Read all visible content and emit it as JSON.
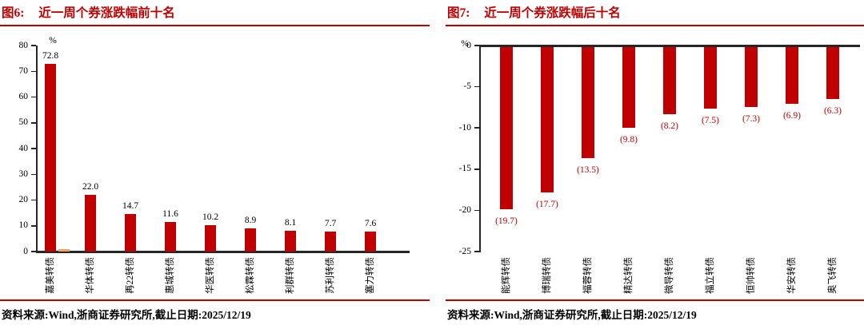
{
  "panels": [
    {
      "figure_label": "图6:",
      "source": "资料来源:Wind,浙商证券研究所,截止日期:2025/12/19"
    },
    {
      "figure_label": "图7:",
      "source": "资料来源:Wind,浙商证券研究所,截止日期:2025/12/19"
    }
  ],
  "colors": {
    "accent_red": "#C00000",
    "bar_red": "#C00000",
    "secondary_orange": "#EFA35C",
    "axis_black": "#262626"
  },
  "chart_data": [
    {
      "type": "bar",
      "title": "近一周个券涨跌幅前十名",
      "unit": "%",
      "categories": [
        "嘉美转债",
        "华体转债",
        "再22转债",
        "惠城转债",
        "华医转债",
        "松霖转债",
        "利群转债",
        "苏利转债",
        "塞力转债"
      ],
      "values": [
        72.8,
        22.0,
        14.7,
        11.6,
        10.2,
        8.9,
        8.1,
        7.7,
        7.6
      ],
      "value_labels": [
        "72.8",
        "22.0",
        "14.7",
        "11.6",
        "10.2",
        "8.9",
        "8.1",
        "7.7",
        "7.6"
      ],
      "secondary_series": {
        "category_index": 0,
        "value": 1.0,
        "color": "#EFA35C"
      },
      "bar_color": "#C00000",
      "value_label_color": "#000000",
      "value_label_position": "above",
      "ylim": [
        0,
        80
      ],
      "yticks": [
        80,
        70,
        60,
        50,
        40,
        30,
        20,
        10,
        0
      ],
      "ylabel": "%",
      "xlabel": "",
      "grid": false,
      "legend": false
    },
    {
      "type": "bar",
      "title": "近一周个券涨跌幅后十名",
      "unit": "%",
      "categories": [
        "能辉转债",
        "博瑞转债",
        "福蓉转债",
        "精达转债",
        "微导转债",
        "福立转债",
        "恒帅转债",
        "华安转债",
        "奥飞转债"
      ],
      "values": [
        -19.7,
        -17.7,
        -13.5,
        -9.8,
        -8.2,
        -7.5,
        -7.3,
        -6.9,
        -6.3
      ],
      "value_labels": [
        "(19.7)",
        "(17.7)",
        "(13.5)",
        "(9.8)",
        "(8.2)",
        "(7.5)",
        "(7.3)",
        "(6.9)",
        "(6.3)"
      ],
      "bar_color": "#C00000",
      "value_label_color": "#C00000",
      "value_label_position": "below",
      "ylim": [
        -25,
        0
      ],
      "yticks": [
        0,
        -5,
        -10,
        -15,
        -20,
        -25
      ],
      "ylabel": "%",
      "xlabel": "",
      "grid": false,
      "legend": false
    }
  ]
}
